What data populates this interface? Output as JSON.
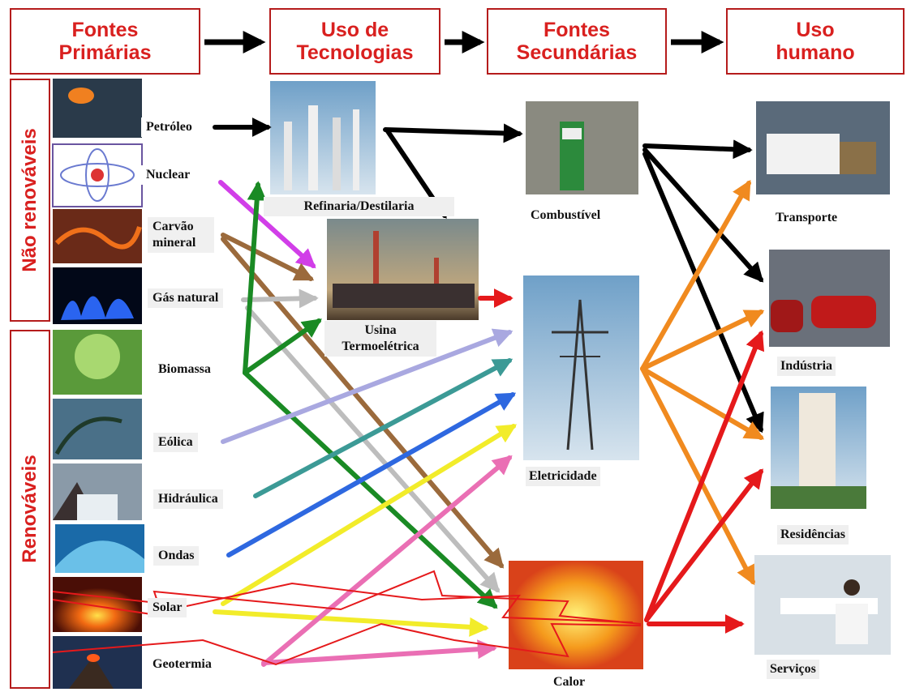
{
  "headers": [
    "Fontes Primárias",
    "Uso de Tecnologias",
    "Fontes Secundárias",
    "Uso humano"
  ],
  "groups": [
    "Não renováveis",
    "Renováveis"
  ],
  "primary_sources": [
    "Petróleo",
    "Nuclear",
    "Carvão mineral",
    "Gás natural",
    "Biomassa",
    "Eólica",
    "Hidráulica",
    "Ondas",
    "Solar",
    "Geotermia"
  ],
  "technologies": [
    "Refinaria/Destilaria",
    "Usina Termoelétrica"
  ],
  "secondary_sources": [
    "Combustível",
    "Eletricidade",
    "Calor"
  ],
  "human_uses": [
    "Transporte",
    "Indústria",
    "Residências",
    "Serviços"
  ]
}
